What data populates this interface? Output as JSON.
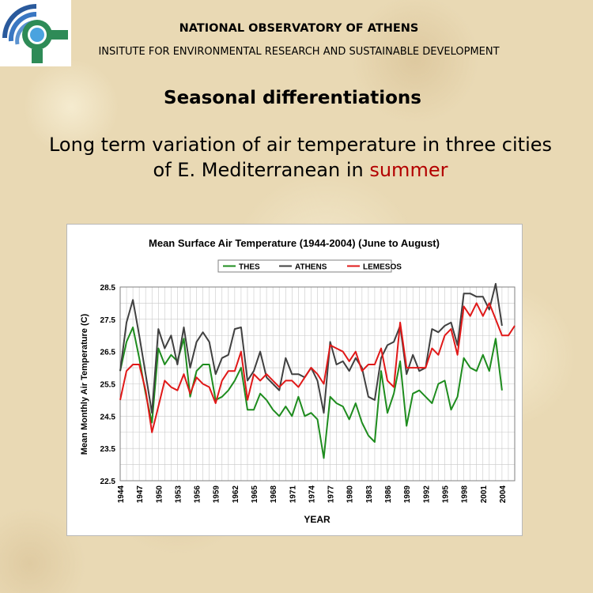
{
  "header": {
    "org_name": "NATIONAL OBSERVATORY OF ATHENS",
    "institute": "INSITUTE FOR ENVIRONMENTAL RESEARCH AND SUSTAINABLE DEVELOPMENT"
  },
  "slide": {
    "title": "Seasonal differentiations",
    "subtitle_before": "Long term variation of air temperature in three cities of E. Mediterranean in ",
    "subtitle_highlight": "summer"
  },
  "colors": {
    "highlight": "#b30000",
    "thes": "#1e8c1e",
    "athens": "#404040",
    "lemesos": "#e01818"
  },
  "chart_data": {
    "type": "line",
    "title": "Mean Surface Air Temperature (1944-2004) (June to August)",
    "xlabel": "YEAR",
    "ylabel": "Mean Monthly Air Temperature (C)",
    "xlim": [
      1944,
      2006
    ],
    "ylim": [
      22.5,
      28.5
    ],
    "yticks": [
      "22.5",
      "23.5",
      "24.5",
      "25.5",
      "26.5",
      "27.5",
      "28.5"
    ],
    "xticks": [
      "1944",
      "1947",
      "1950",
      "1953",
      "1956",
      "1959",
      "1962",
      "1965",
      "1968",
      "1971",
      "1974",
      "1977",
      "1980",
      "1983",
      "1986",
      "1989",
      "1992",
      "1995",
      "1998",
      "2001",
      "2004"
    ],
    "grid": true,
    "legend_position": "top",
    "x": [
      1944,
      1945,
      1946,
      1947,
      1948,
      1949,
      1950,
      1951,
      1952,
      1953,
      1954,
      1955,
      1956,
      1957,
      1958,
      1959,
      1960,
      1961,
      1962,
      1963,
      1964,
      1965,
      1966,
      1967,
      1968,
      1969,
      1970,
      1971,
      1972,
      1973,
      1974,
      1975,
      1976,
      1977,
      1978,
      1979,
      1980,
      1981,
      1982,
      1983,
      1984,
      1985,
      1986,
      1987,
      1988,
      1989,
      1990,
      1991,
      1992,
      1993,
      1994,
      1995,
      1996,
      1997,
      1998,
      1999,
      2000,
      2001,
      2002,
      2003,
      2004,
      2005,
      2006
    ],
    "series": [
      {
        "name": "THES",
        "color": "#1e8c1e",
        "values": [
          25.9,
          26.8,
          27.25,
          26.3,
          25.2,
          24.3,
          26.6,
          26.1,
          26.4,
          26.2,
          26.9,
          25.1,
          25.9,
          26.1,
          26.1,
          25.0,
          25.1,
          25.3,
          25.6,
          26.0,
          24.7,
          24.7,
          25.2,
          25.0,
          24.7,
          24.5,
          24.8,
          24.5,
          25.1,
          24.5,
          24.6,
          24.4,
          23.2,
          25.1,
          24.9,
          24.8,
          24.4,
          24.9,
          24.3,
          23.9,
          23.7,
          25.9,
          24.6,
          25.2,
          26.2,
          24.2,
          25.2,
          25.3,
          25.1,
          24.9,
          25.5,
          25.6,
          24.7,
          25.1,
          26.3,
          26.0,
          25.9,
          26.4,
          25.9,
          26.9,
          25.3,
          null,
          null
        ]
      },
      {
        "name": "ATHENS",
        "color": "#404040",
        "values": [
          25.9,
          27.4,
          28.1,
          27.0,
          25.8,
          24.6,
          27.2,
          26.6,
          27.0,
          26.1,
          27.25,
          26.0,
          26.8,
          27.1,
          26.8,
          25.8,
          26.3,
          26.4,
          27.2,
          27.25,
          25.6,
          25.9,
          26.5,
          25.7,
          25.5,
          25.3,
          26.3,
          25.8,
          25.8,
          25.7,
          26.0,
          25.6,
          24.6,
          26.8,
          26.1,
          26.2,
          25.9,
          26.3,
          26.0,
          25.1,
          25.0,
          26.3,
          26.7,
          26.8,
          27.3,
          25.8,
          26.4,
          25.9,
          26.0,
          27.2,
          27.1,
          27.3,
          27.4,
          26.7,
          28.3,
          28.3,
          28.2,
          28.2,
          27.8,
          28.6,
          27.3,
          null,
          null
        ]
      },
      {
        "name": "LEMESOS",
        "color": "#e01818",
        "values": [
          25.0,
          25.9,
          26.1,
          26.1,
          25.3,
          24.0,
          24.8,
          25.6,
          25.4,
          25.3,
          25.8,
          25.2,
          25.7,
          25.5,
          25.4,
          24.9,
          25.6,
          25.9,
          25.9,
          26.5,
          25.0,
          25.8,
          25.6,
          25.8,
          25.6,
          25.4,
          25.6,
          25.6,
          25.4,
          25.7,
          26.0,
          25.8,
          25.5,
          26.7,
          26.6,
          26.5,
          26.2,
          26.5,
          25.9,
          26.1,
          26.1,
          26.6,
          25.6,
          25.4,
          27.4,
          26.0,
          26.0,
          26.0,
          26.0,
          26.6,
          26.4,
          27.0,
          27.2,
          26.4,
          27.9,
          27.6,
          28.0,
          27.6,
          28.0,
          27.5,
          27.0,
          27.0,
          27.3
        ]
      }
    ]
  }
}
